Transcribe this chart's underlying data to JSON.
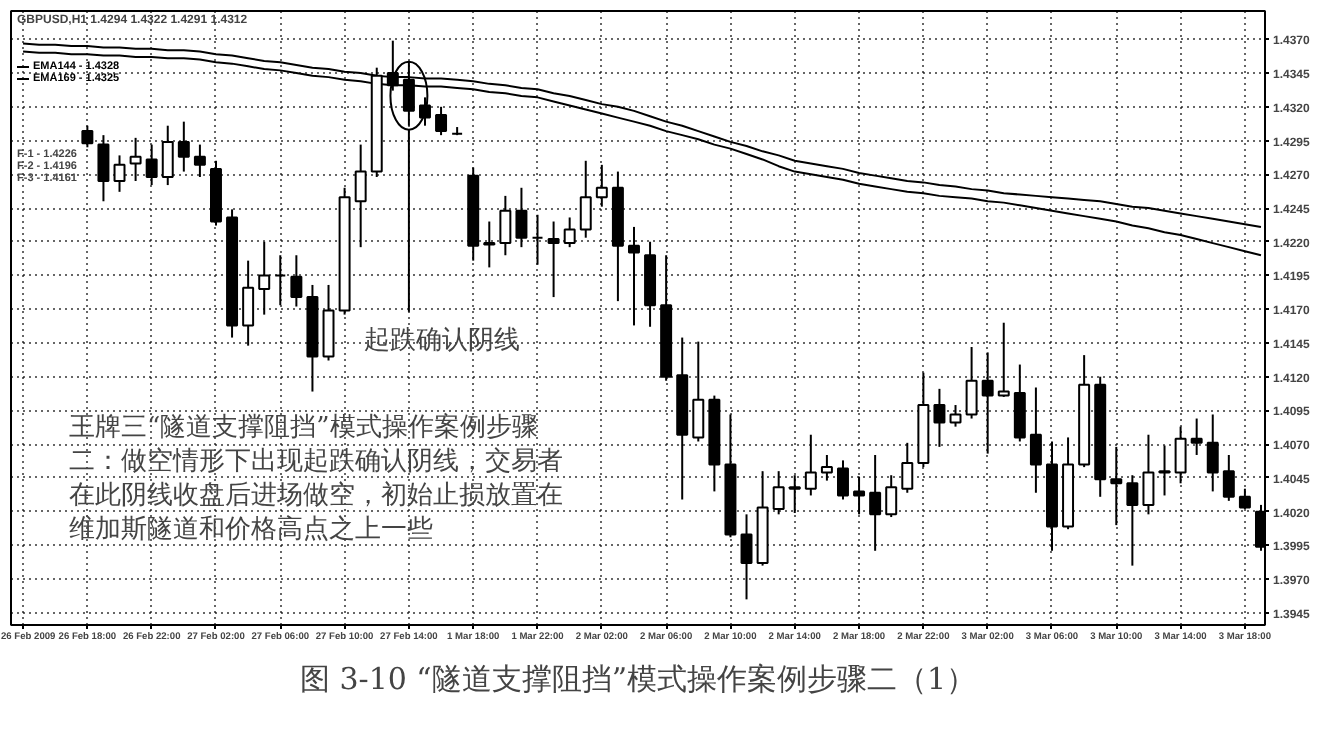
{
  "chart_data": {
    "type": "candlestick",
    "title": "图 3-10 “隧道支撑阻挡”模式操作案例步骤二（1）",
    "categories": [
      "26 Feb 2009",
      null,
      null,
      null,
      "26 Feb 18:00",
      null,
      null,
      null,
      "26 Feb 22:00",
      null,
      null,
      null,
      "27 Feb 02:00",
      null,
      null,
      null,
      "27 Feb 06:00",
      null,
      null,
      null,
      "27 Feb 10:00",
      null,
      null,
      null,
      "27 Feb 14:00",
      null,
      null,
      null,
      "1 Mar 18:00",
      null,
      null,
      null,
      "1 Mar 22:00",
      null,
      null,
      null,
      "2 Mar 02:00",
      null,
      null,
      null,
      "2 Mar 06:00",
      null,
      null,
      null,
      "2 Mar 10:00",
      null,
      null,
      null,
      "2 Mar 14:00",
      null,
      null,
      null,
      "2 Mar 18:00",
      null,
      null,
      null,
      "2 Mar 22:00",
      null,
      null,
      null,
      "3 Mar 02:00",
      null,
      null,
      null,
      "3 Mar 06:00",
      null,
      null,
      null,
      "3 Mar 10:00",
      null,
      null,
      null,
      "3 Mar 14:00",
      null,
      null,
      null,
      "3 Mar 18:00",
      null
    ],
    "colors": [
      null,
      null,
      null,
      null,
      "#000000",
      "#000000",
      "#ffffff",
      "#ffffff",
      "#000000",
      "#ffffff",
      "#000000",
      "#000000",
      "#000000",
      "#000000",
      "#ffffff",
      "#ffffff",
      "#000000",
      "#000000",
      "#000000",
      "#ffffff",
      "#ffffff",
      "#ffffff",
      "#ffffff",
      "#000000",
      "#000000",
      "#000000",
      "#000000",
      "#000000",
      "#000000",
      "#000000",
      "#ffffff",
      "#000000",
      "#000000",
      "#000000",
      "#ffffff",
      "#ffffff",
      "#ffffff",
      "#000000",
      "#000000",
      "#000000",
      "#000000",
      "#000000",
      "#ffffff",
      "#000000",
      "#000000",
      "#000000",
      "#ffffff",
      "#ffffff",
      "#000000",
      "#ffffff",
      "#ffffff",
      "#000000",
      "#000000",
      "#000000",
      "#ffffff",
      "#ffffff",
      "#ffffff",
      "#000000",
      "#ffffff",
      "#ffffff",
      "#000000",
      "#ffffff",
      "#000000",
      "#000000",
      "#000000",
      "#ffffff",
      "#ffffff",
      "#000000",
      "#000000",
      "#000000",
      "#ffffff",
      "#ffffff",
      "#ffffff",
      "#000000",
      "#000000",
      "#000000",
      "#000000",
      "#000000"
    ],
    "ohlc": [
      null,
      null,
      null,
      null,
      [
        1.4302,
        1.4306,
        1.429,
        1.4293
      ],
      [
        1.4292,
        1.4299,
        1.425,
        1.4265
      ],
      [
        1.4265,
        1.4284,
        1.4257,
        1.4277
      ],
      [
        1.4278,
        1.4297,
        1.4265,
        1.4283
      ],
      [
        1.4281,
        1.4292,
        1.4262,
        1.4268
      ],
      [
        1.4268,
        1.4306,
        1.4262,
        1.4294
      ],
      [
        1.4294,
        1.4309,
        1.4272,
        1.4283
      ],
      [
        1.4283,
        1.4292,
        1.4268,
        1.4277
      ],
      [
        1.4274,
        1.428,
        1.4232,
        1.4235
      ],
      [
        1.4238,
        1.4244,
        1.4149,
        1.4158
      ],
      [
        1.4158,
        1.4206,
        1.4143,
        1.4186
      ],
      [
        1.4185,
        1.422,
        1.4166,
        1.4195
      ],
      [
        1.4195,
        1.421,
        1.4173,
        1.4195
      ],
      [
        1.4194,
        1.421,
        1.4172,
        1.4179
      ],
      [
        1.4179,
        1.4188,
        1.4109,
        1.4135
      ],
      [
        1.4135,
        1.4188,
        1.4132,
        1.4169
      ],
      [
        1.4169,
        1.426,
        1.4166,
        1.4253
      ],
      [
        1.425,
        1.4292,
        1.4216,
        1.4272
      ],
      [
        1.4272,
        1.4349,
        1.4268,
        1.4343
      ],
      [
        1.4345,
        1.4369,
        1.4332,
        1.4336
      ],
      [
        1.434,
        1.4354,
        1.4306,
        1.4317
      ],
      [
        1.4321,
        1.4327,
        1.4306,
        1.4312
      ],
      [
        1.4314,
        1.432,
        1.4299,
        1.4302
      ],
      [
        1.43,
        1.4305,
        1.4299,
        1.43
      ],
      [
        1.4269,
        1.4275,
        1.4206,
        1.4217
      ],
      [
        1.4219,
        1.4235,
        1.4201,
        1.4218
      ],
      [
        1.4219,
        1.4254,
        1.421,
        1.4243
      ],
      [
        1.4243,
        1.426,
        1.4216,
        1.4223
      ],
      [
        1.4223,
        1.424,
        1.4203,
        1.4223
      ],
      [
        1.4222,
        1.4235,
        1.4179,
        1.4219
      ],
      [
        1.4219,
        1.4238,
        1.4216,
        1.4229
      ],
      [
        1.4229,
        1.428,
        1.4223,
        1.4253
      ],
      [
        1.4253,
        1.4277,
        1.4246,
        1.426
      ],
      [
        1.426,
        1.4272,
        1.4176,
        1.4217
      ],
      [
        1.4217,
        1.4231,
        1.4158,
        1.4212
      ],
      [
        1.421,
        1.422,
        1.4157,
        1.4173
      ],
      [
        1.4173,
        1.421,
        1.4117,
        1.412
      ],
      [
        1.4121,
        1.4149,
        1.4029,
        1.4077
      ],
      [
        1.4075,
        1.4146,
        1.4072,
        1.4103
      ],
      [
        1.4103,
        1.4106,
        1.4035,
        1.4055
      ],
      [
        1.4055,
        1.4092,
        1.4001,
        1.4003
      ],
      [
        1.4003,
        1.4018,
        1.3955,
        1.3982
      ],
      [
        1.3982,
        1.405,
        1.398,
        1.4023
      ],
      [
        1.4022,
        1.405,
        1.4018,
        1.4038
      ],
      [
        1.4038,
        1.4047,
        1.4019,
        1.4037
      ],
      [
        1.4037,
        1.4077,
        1.4032,
        1.4049
      ],
      [
        1.4049,
        1.4062,
        1.4043,
        1.4053
      ],
      [
        1.4052,
        1.4058,
        1.4029,
        1.4032
      ],
      [
        1.4035,
        1.4046,
        1.4018,
        1.4032
      ],
      [
        1.4034,
        1.4062,
        1.3991,
        1.4018
      ],
      [
        1.4018,
        1.4047,
        1.4016,
        1.4038
      ],
      [
        1.4037,
        1.4071,
        1.4034,
        1.4056
      ],
      [
        1.4056,
        1.4123,
        1.4053,
        1.4099
      ],
      [
        1.4099,
        1.4111,
        1.4068,
        1.4086
      ],
      [
        1.4086,
        1.4099,
        1.4083,
        1.4092
      ],
      [
        1.4092,
        1.4142,
        1.4089,
        1.4117
      ],
      [
        1.4117,
        1.4138,
        1.4063,
        1.4106
      ],
      [
        1.4106,
        1.416,
        1.4105,
        1.4109
      ],
      [
        1.4108,
        1.4129,
        1.4072,
        1.4075
      ],
      [
        1.4077,
        1.4112,
        1.4034,
        1.4055
      ],
      [
        1.4055,
        1.4072,
        1.3991,
        1.4009
      ],
      [
        1.4009,
        1.4075,
        1.4007,
        1.4055
      ],
      [
        1.4055,
        1.4136,
        1.4053,
        1.4114
      ],
      [
        1.4114,
        1.412,
        1.4031,
        1.4044
      ],
      [
        1.4044,
        1.4068,
        1.401,
        1.4041
      ],
      [
        1.4041,
        1.4047,
        1.398,
        1.4025
      ],
      [
        1.4025,
        1.4077,
        1.4018,
        1.4049
      ],
      [
        1.4049,
        1.4069,
        1.4032,
        1.405
      ],
      [
        1.4049,
        1.4083,
        1.4041,
        1.4074
      ],
      [
        1.4074,
        1.4089,
        1.4062,
        1.4071
      ],
      [
        1.4071,
        1.4092,
        1.4035,
        1.4049
      ],
      [
        1.405,
        1.4062,
        1.4028,
        1.4031
      ],
      [
        1.4031,
        1.4037,
        1.4022,
        1.4023
      ],
      [
        1.402,
        1.4025,
        1.3991,
        1.3994
      ]
    ],
    "series": [
      {
        "name": "EMA144 - 1.4328",
        "type": "line",
        "color": "#000000",
        "values": [
          1.4367,
          1.4366,
          1.4366,
          1.4365,
          1.4365,
          1.4364,
          1.4364,
          1.4363,
          1.4363,
          1.4362,
          1.4362,
          1.4361,
          1.4359,
          1.4358,
          1.4356,
          1.4354,
          1.4353,
          1.4351,
          1.4349,
          1.4348,
          1.4346,
          1.4345,
          1.4343,
          1.4342,
          1.4342,
          1.4341,
          1.4341,
          1.434,
          1.4339,
          1.4337,
          1.4336,
          1.4334,
          1.4333,
          1.433,
          1.4328,
          1.4325,
          1.4322,
          1.432,
          1.4317,
          1.4313,
          1.4309,
          1.4306,
          1.4302,
          1.4298,
          1.4294,
          1.4291,
          1.4287,
          1.4284,
          1.428,
          1.4278,
          1.4276,
          1.4274,
          1.4271,
          1.4269,
          1.4267,
          1.4265,
          1.4264,
          1.4262,
          1.4261,
          1.4259,
          1.4258,
          1.4256,
          1.4255,
          1.4254,
          1.4253,
          1.4252,
          1.4251,
          1.425,
          1.4248,
          1.4246,
          1.4245,
          1.4243,
          1.4241,
          1.4239,
          1.4237,
          1.4235,
          1.4233,
          1.4231
        ]
      },
      {
        "name": "EMA169 - 1.4325",
        "type": "line",
        "color": "#000000",
        "values": [
          1.4361,
          1.436,
          1.436,
          1.4359,
          1.4359,
          1.4358,
          1.4358,
          1.4357,
          1.4357,
          1.4356,
          1.4356,
          1.4355,
          1.4353,
          1.4352,
          1.435,
          1.4348,
          1.4347,
          1.4345,
          1.4343,
          1.4342,
          1.434,
          1.4339,
          1.4337,
          1.4336,
          1.4336,
          1.4335,
          1.4335,
          1.4334,
          1.4333,
          1.4331,
          1.433,
          1.4328,
          1.4327,
          1.4324,
          1.4321,
          1.4318,
          1.4315,
          1.4312,
          1.4309,
          1.4306,
          1.4302,
          1.4299,
          1.4296,
          1.4292,
          1.4289,
          1.4285,
          1.4281,
          1.4276,
          1.4272,
          1.427,
          1.4268,
          1.4266,
          1.4263,
          1.4261,
          1.4259,
          1.4257,
          1.4256,
          1.4254,
          1.4253,
          1.4252,
          1.425,
          1.4249,
          1.4247,
          1.4245,
          1.4243,
          1.4241,
          1.4239,
          1.4237,
          1.4235,
          1.4232,
          1.423,
          1.4227,
          1.4225,
          1.4222,
          1.4219,
          1.4216,
          1.4213,
          1.421
        ]
      }
    ],
    "ylim": [
      1.3936,
      1.4391
    ],
    "yticks": [
      {
        "value": 1.3945,
        "label": "1.3945"
      },
      {
        "value": 1.397,
        "label": "1.3970"
      },
      {
        "value": 1.3995,
        "label": "1.3995"
      },
      {
        "value": 1.402,
        "label": "1.4020"
      },
      {
        "value": 1.4045,
        "label": "1.4045"
      },
      {
        "value": 1.407,
        "label": "1.4070"
      },
      {
        "value": 1.4095,
        "label": "1.4095"
      },
      {
        "value": 1.412,
        "label": "1.4120"
      },
      {
        "value": 1.4145,
        "label": "1.4145"
      },
      {
        "value": 1.417,
        "label": "1.4170"
      },
      {
        "value": 1.4195,
        "label": "1.4195"
      },
      {
        "value": 1.422,
        "label": "1.4220"
      },
      {
        "value": 1.4245,
        "label": "1.4245"
      },
      {
        "value": 1.427,
        "label": "1.4270"
      },
      {
        "value": 1.4295,
        "label": "1.4295"
      },
      {
        "value": 1.432,
        "label": "1.4320"
      },
      {
        "value": 1.4345,
        "label": "1.4345"
      },
      {
        "value": 1.437,
        "label": "1.4370"
      }
    ],
    "grid": true,
    "legend": "top left",
    "marker": "none",
    "line_style": "solid",
    "annotations": [
      "GBPUSD,H1 1.4294 1.4322 1.4291 1.4312",
      "F-1 - 1.4226",
      "F-2 - 1.4196",
      "F-3 - 1.4161",
      "王牌三“隧道支撑阻挡”模式操作案例步骤二：做空情形下出现起跌确认阴线，交易者在此阴线收盘后进场做空，初始止损放置在维加斯隧道和价格高点之上一些",
      {
        "text": "起跌确认阴线",
        "x": "27 Feb 14:00",
        "y": 1.4303
      }
    ]
  }
}
